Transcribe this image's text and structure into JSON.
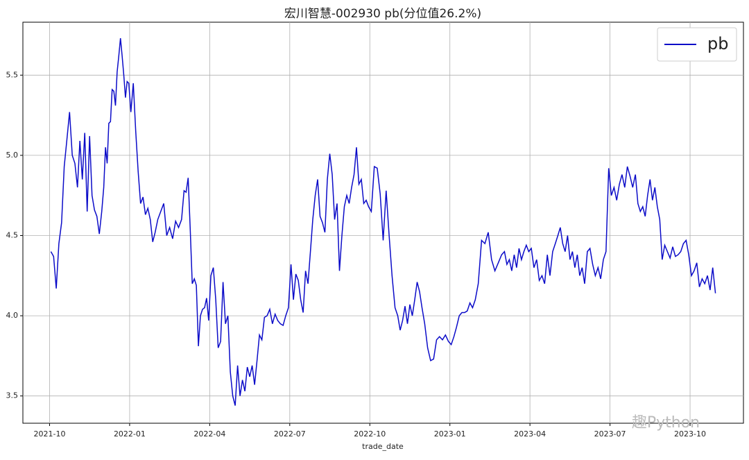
{
  "chart_data": {
    "type": "line",
    "title": "宏川智慧-002930 pb(分位值26.2%)",
    "x_label": "trade_date",
    "watermark": "趣Python",
    "x": [
      "2021-10",
      "2021-10",
      "2021-10",
      "2021-10",
      "2021-10",
      "2021-10",
      "2021-10",
      "2021-10",
      "2021-10",
      "2021-10",
      "2021-11",
      "2021-11",
      "2021-11",
      "2021-11",
      "2021-11",
      "2021-11",
      "2021-11",
      "2021-11",
      "2021-11",
      "2021-11",
      "2021-11",
      "2021-12",
      "2021-12",
      "2021-12",
      "2021-12",
      "2021-12",
      "2021-12",
      "2021-12",
      "2021-12",
      "2021-12",
      "2021-12",
      "2021-12",
      "2021-12",
      "2021-12",
      "2021-12",
      "2021-12",
      "2021-12",
      "2022-01",
      "2022-01",
      "2022-01",
      "2022-01",
      "2022-01",
      "2022-01",
      "2022-01",
      "2022-01",
      "2022-01",
      "2022-01",
      "2022-01",
      "2022-02",
      "2022-02",
      "2022-02",
      "2022-02",
      "2022-02",
      "2022-02",
      "2022-02",
      "2022-02",
      "2022-02",
      "2022-03",
      "2022-03",
      "2022-03",
      "2022-03",
      "2022-03",
      "2022-03",
      "2022-03",
      "2022-03",
      "2022-03",
      "2022-03",
      "2022-03",
      "2022-03",
      "2022-03",
      "2022-04",
      "2022-04",
      "2022-04",
      "2022-04",
      "2022-04",
      "2022-04",
      "2022-04",
      "2022-04",
      "2022-04",
      "2022-04",
      "2022-04",
      "2022-05",
      "2022-05",
      "2022-05",
      "2022-05",
      "2022-05",
      "2022-05",
      "2022-05",
      "2022-05",
      "2022-05",
      "2022-05",
      "2022-05",
      "2022-06",
      "2022-06",
      "2022-06",
      "2022-06",
      "2022-06",
      "2022-06",
      "2022-06",
      "2022-06",
      "2022-06",
      "2022-06",
      "2022-07",
      "2022-07",
      "2022-07",
      "2022-07",
      "2022-07",
      "2022-07",
      "2022-07",
      "2022-07",
      "2022-07",
      "2022-07",
      "2022-07",
      "2022-08",
      "2022-08",
      "2022-08",
      "2022-08",
      "2022-08",
      "2022-08",
      "2022-08",
      "2022-08",
      "2022-08",
      "2022-08",
      "2022-08",
      "2022-09",
      "2022-09",
      "2022-09",
      "2022-09",
      "2022-09",
      "2022-09",
      "2022-09",
      "2022-09",
      "2022-09",
      "2022-09",
      "2022-09",
      "2022-10",
      "2022-10",
      "2022-10",
      "2022-10",
      "2022-10",
      "2022-10",
      "2022-10",
      "2022-10",
      "2022-10",
      "2022-11",
      "2022-11",
      "2022-11",
      "2022-11",
      "2022-11",
      "2022-11",
      "2022-11",
      "2022-11",
      "2022-11",
      "2022-11",
      "2022-11",
      "2022-12",
      "2022-12",
      "2022-12",
      "2022-12",
      "2022-12",
      "2022-12",
      "2022-12",
      "2022-12",
      "2022-12",
      "2023-01",
      "2023-01",
      "2023-01",
      "2023-01",
      "2023-01",
      "2023-01",
      "2023-01",
      "2023-01",
      "2023-01",
      "2023-01",
      "2023-02",
      "2023-02",
      "2023-02",
      "2023-02",
      "2023-02",
      "2023-02",
      "2023-02",
      "2023-02",
      "2023-03",
      "2023-03",
      "2023-03",
      "2023-03",
      "2023-03",
      "2023-03",
      "2023-03",
      "2023-03",
      "2023-03",
      "2023-03",
      "2023-03",
      "2023-04",
      "2023-04",
      "2023-04",
      "2023-04",
      "2023-04",
      "2023-04",
      "2023-04",
      "2023-04",
      "2023-04",
      "2023-04",
      "2023-05",
      "2023-05",
      "2023-05",
      "2023-05",
      "2023-05",
      "2023-05",
      "2023-05",
      "2023-05",
      "2023-05",
      "2023-05",
      "2023-05",
      "2023-06",
      "2023-06",
      "2023-06",
      "2023-06",
      "2023-06",
      "2023-06",
      "2023-06",
      "2023-06",
      "2023-06",
      "2023-06",
      "2023-07",
      "2023-07",
      "2023-07",
      "2023-07",
      "2023-07",
      "2023-07",
      "2023-07",
      "2023-07",
      "2023-07",
      "2023-07",
      "2023-08",
      "2023-08",
      "2023-08",
      "2023-08",
      "2023-08",
      "2023-08",
      "2023-08",
      "2023-08",
      "2023-08",
      "2023-08",
      "2023-08",
      "2023-09",
      "2023-09",
      "2023-09",
      "2023-09",
      "2023-09",
      "2023-09",
      "2023-09",
      "2023-09",
      "2023-09",
      "2023-09",
      "2023-10",
      "2023-10",
      "2023-10",
      "2023-10",
      "2023-10",
      "2023-10",
      "2023-10",
      "2023-10",
      "2023-10",
      "2023-10"
    ],
    "series": [
      {
        "name": "pb",
        "color": "#0b0bc8",
        "values": [
          4.4,
          4.37,
          4.17,
          4.45,
          4.58,
          4.93,
          5.1,
          5.27,
          5.0,
          4.95,
          4.8,
          5.09,
          4.85,
          5.14,
          4.65,
          5.12,
          4.75,
          4.66,
          4.62,
          4.51,
          4.65,
          4.8,
          5.05,
          4.95,
          5.2,
          5.21,
          5.41,
          5.4,
          5.31,
          5.52,
          5.62,
          5.73,
          5.62,
          5.5,
          5.36,
          5.46,
          5.45,
          5.27,
          5.45,
          5.15,
          4.9,
          4.7,
          4.74,
          4.63,
          4.67,
          4.6,
          4.46,
          4.52,
          4.6,
          4.65,
          4.7,
          4.5,
          4.55,
          4.48,
          4.59,
          4.55,
          4.6,
          4.78,
          4.77,
          4.86,
          4.55,
          4.2,
          4.23,
          4.19,
          3.81,
          4.0,
          4.04,
          4.05,
          4.11,
          3.97,
          4.25,
          4.3,
          4.1,
          3.8,
          3.84,
          4.21,
          3.95,
          4.0,
          3.65,
          3.5,
          3.44,
          3.69,
          3.5,
          3.6,
          3.53,
          3.68,
          3.62,
          3.69,
          3.57,
          3.72,
          3.88,
          3.85,
          3.99,
          4.0,
          4.04,
          3.95,
          4.01,
          3.97,
          3.95,
          3.94,
          4.0,
          4.05,
          4.32,
          4.1,
          4.26,
          4.22,
          4.1,
          4.02,
          4.28,
          4.2,
          4.4,
          4.6,
          4.75,
          4.85,
          4.62,
          4.58,
          4.52,
          4.85,
          5.01,
          4.88,
          4.6,
          4.7,
          4.28,
          4.5,
          4.68,
          4.75,
          4.7,
          4.8,
          4.88,
          5.05,
          4.82,
          4.85,
          4.7,
          4.72,
          4.68,
          4.65,
          4.93,
          4.92,
          4.76,
          4.47,
          4.78,
          4.5,
          4.25,
          4.05,
          4.0,
          3.91,
          3.97,
          4.06,
          3.95,
          4.07,
          4.0,
          4.1,
          4.21,
          4.15,
          4.05,
          3.95,
          3.8,
          3.72,
          3.73,
          3.85,
          3.87,
          3.85,
          3.88,
          3.84,
          3.82,
          3.87,
          3.93,
          4.0,
          4.02,
          4.02,
          4.03,
          4.08,
          4.05,
          4.1,
          4.2,
          4.47,
          4.45,
          4.52,
          4.35,
          4.28,
          4.33,
          4.38,
          4.4,
          4.32,
          4.35,
          4.28,
          4.38,
          4.3,
          4.42,
          4.35,
          4.4,
          4.44,
          4.4,
          4.42,
          4.3,
          4.35,
          4.22,
          4.25,
          4.2,
          4.38,
          4.25,
          4.4,
          4.45,
          4.5,
          4.55,
          4.45,
          4.4,
          4.5,
          4.35,
          4.4,
          4.3,
          4.38,
          4.25,
          4.3,
          4.2,
          4.4,
          4.42,
          4.32,
          4.25,
          4.3,
          4.23,
          4.35,
          4.4,
          4.92,
          4.75,
          4.8,
          4.72,
          4.82,
          4.88,
          4.8,
          4.93,
          4.87,
          4.8,
          4.88,
          4.7,
          4.65,
          4.68,
          4.62,
          4.75,
          4.85,
          4.72,
          4.8,
          4.68,
          4.6,
          4.35,
          4.44,
          4.4,
          4.36,
          4.43,
          4.37,
          4.38,
          4.4,
          4.45,
          4.47,
          4.38,
          4.25,
          4.28,
          4.33,
          4.18,
          4.23,
          4.2,
          4.25,
          4.16,
          4.3,
          4.14
        ]
      }
    ],
    "xlim": [
      "2021-09",
      "2023-12"
    ],
    "xticks": [
      "2021-10",
      "2022-01",
      "2022-04",
      "2022-07",
      "2022-10",
      "2023-01",
      "2023-04",
      "2023-07",
      "2023-10"
    ],
    "ylim": [
      3.33,
      5.83
    ],
    "yticks": [
      {
        "value": 3.5,
        "label": "3.5"
      },
      {
        "value": 4,
        "label": "4.0"
      },
      {
        "value": 4.5,
        "label": "4.5"
      },
      {
        "value": 5,
        "label": "5.0"
      },
      {
        "value": 5.5,
        "label": "5.5"
      }
    ],
    "grid": true,
    "legend": "upper right"
  }
}
